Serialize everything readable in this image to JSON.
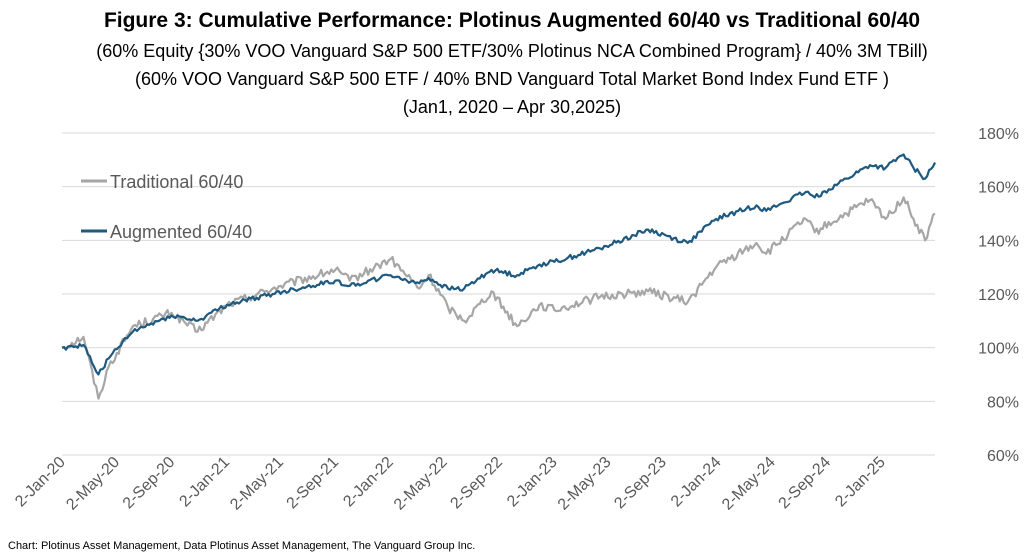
{
  "chart_data": {
    "type": "line",
    "title": "Figure 3: Cumulative Performance: Plotinus Augmented 60/40 vs Traditional 60/40",
    "subtitles": [
      "(60% Equity {30% VOO Vanguard S&P 500 ETF/30% Plotinus NCA Combined Program} / 40% 3M TBill)",
      "(60% VOO Vanguard S&P 500 ETF / 40% BND Vanguard Total Market Bond Index Fund ETF )",
      "(Jan1, 2020 – Apr 30,2025)"
    ],
    "x_tick_labels": [
      "2-Jan-20",
      "2-May-20",
      "2-Sep-20",
      "2-Jan-21",
      "2-May-21",
      "2-Sep-21",
      "2-Jan-22",
      "2-May-22",
      "2-Sep-22",
      "2-Jan-23",
      "2-May-23",
      "2-Sep-23",
      "2-Jan-24",
      "2-May-24",
      "2-Sep-24",
      "2-Jan-25"
    ],
    "y_tick_labels": [
      "60%",
      "80%",
      "100%",
      "120%",
      "140%",
      "160%",
      "180%"
    ],
    "ylim": [
      60,
      180
    ],
    "xlim": [
      "2020-01-02",
      "2025-04-30"
    ],
    "grid": "horizontal",
    "legend_position": "top-left",
    "series": [
      {
        "name": "Traditional 60/40",
        "color": "#a6a6a6",
        "x": [
          "2020-01-02",
          "2020-02-19",
          "2020-03-23",
          "2020-04-15",
          "2020-06-08",
          "2020-09-02",
          "2020-10-30",
          "2021-01-04",
          "2021-04-15",
          "2021-09-02",
          "2021-10-04",
          "2022-01-03",
          "2022-03-08",
          "2022-03-29",
          "2022-05-11",
          "2022-06-16",
          "2022-08-16",
          "2022-10-12",
          "2022-12-01",
          "2023-01-03",
          "2023-04-15",
          "2023-07-31",
          "2023-10-27",
          "2023-12-29",
          "2024-03-28",
          "2024-04-19",
          "2024-07-16",
          "2024-08-05",
          "2024-10-15",
          "2024-12-06",
          "2025-01-10",
          "2025-02-19",
          "2025-03-13",
          "2025-04-08",
          "2025-04-30"
        ],
        "y": [
          100,
          104,
          81,
          93,
          108,
          113,
          106,
          116,
          122,
          129,
          125,
          133,
          122,
          127,
          115,
          110,
          121,
          108,
          116,
          114,
          119,
          121,
          117,
          130,
          139,
          135,
          148,
          143,
          150,
          155,
          148,
          156,
          148,
          140,
          150
        ]
      },
      {
        "name": "Augmented 60/40",
        "color": "#1e5a80",
        "x": [
          "2020-01-02",
          "2020-02-19",
          "2020-03-23",
          "2020-04-15",
          "2020-06-08",
          "2020-09-02",
          "2020-10-30",
          "2021-01-04",
          "2021-04-15",
          "2021-09-02",
          "2021-10-04",
          "2022-01-03",
          "2022-03-08",
          "2022-03-29",
          "2022-05-11",
          "2022-06-16",
          "2022-08-16",
          "2022-10-12",
          "2022-12-01",
          "2023-01-03",
          "2023-04-15",
          "2023-07-31",
          "2023-10-27",
          "2023-12-29",
          "2024-03-28",
          "2024-04-19",
          "2024-07-16",
          "2024-08-05",
          "2024-10-15",
          "2024-12-06",
          "2025-01-10",
          "2025-02-19",
          "2025-03-13",
          "2025-04-08",
          "2025-04-30"
        ],
        "y": [
          100,
          101,
          90,
          96,
          106,
          112,
          110,
          116,
          120,
          125,
          123,
          127,
          124,
          126,
          122,
          122,
          129,
          127,
          131,
          132,
          137,
          144,
          139,
          148,
          153,
          151,
          158,
          156,
          163,
          168,
          167,
          172,
          167,
          163,
          169
        ]
      }
    ]
  },
  "footnote": "Chart: Plotinus Asset Management, Data Plotinus Asset Management, The Vanguard Group Inc."
}
